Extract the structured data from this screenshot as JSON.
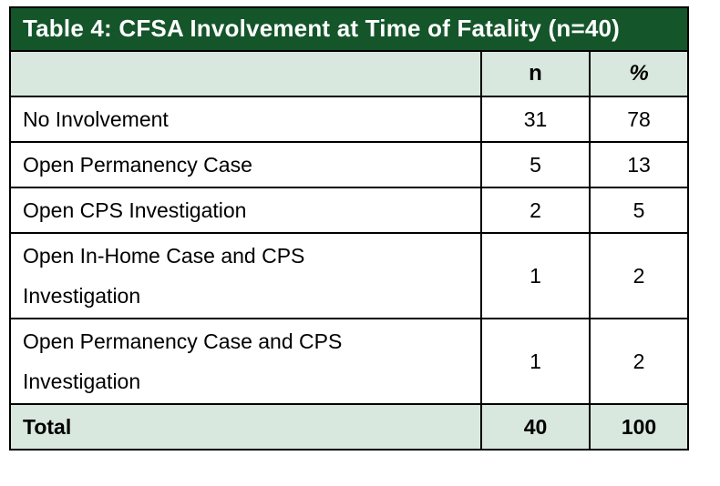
{
  "table": {
    "title": "Table 4: CFSA Involvement at Time of Fatality (n=40)",
    "columns": {
      "label": "",
      "n": "n",
      "pct": "%"
    },
    "rows": [
      {
        "label": "No Involvement",
        "n": "31",
        "pct": "78"
      },
      {
        "label": "Open Permanency Case",
        "n": "5",
        "pct": "13"
      },
      {
        "label": "Open CPS Investigation",
        "n": "2",
        "pct": "5"
      },
      {
        "label": "Open In-Home Case and CPS Investigation",
        "n": "1",
        "pct": "2"
      },
      {
        "label": "Open Permanency Case and CPS Investigation",
        "n": "1",
        "pct": "2"
      }
    ],
    "total": {
      "label": "Total",
      "n": "40",
      "pct": "100"
    },
    "colors": {
      "title_bg": "#14552A",
      "title_text": "#FFFFFF",
      "band_bg": "#D9E8DE",
      "border": "#000000",
      "body_text": "#000000"
    }
  },
  "chart_data": {
    "type": "table",
    "title": "Table 4: CFSA Involvement at Time of Fatality (n=40)",
    "columns": [
      "",
      "n",
      "%"
    ],
    "rows": [
      [
        "No Involvement",
        31,
        78
      ],
      [
        "Open Permanency Case",
        5,
        13
      ],
      [
        "Open CPS Investigation",
        2,
        5
      ],
      [
        "Open In-Home Case and CPS Investigation",
        1,
        2
      ],
      [
        "Open Permanency Case and CPS Investigation",
        1,
        2
      ],
      [
        "Total",
        40,
        100
      ]
    ]
  }
}
